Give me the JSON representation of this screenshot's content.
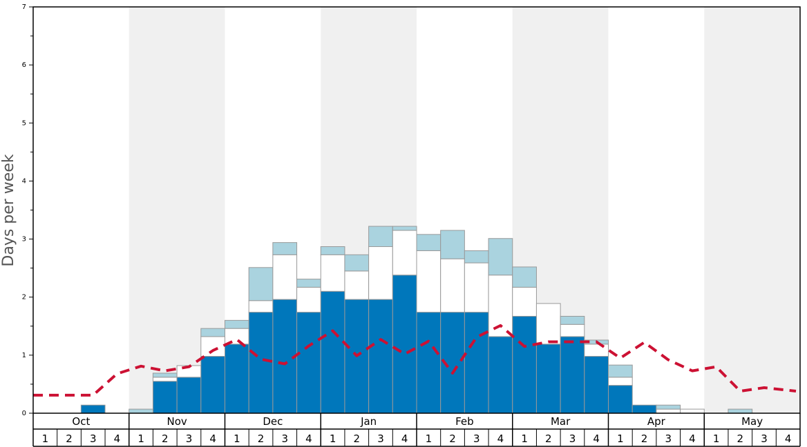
{
  "chart_data": {
    "type": "bar",
    "stacked": true,
    "ylabel": "Days per week",
    "ylim": [
      0,
      7
    ],
    "y_ticks": [
      "0",
      "1",
      "2",
      "3",
      "4",
      "5",
      "6",
      "7"
    ],
    "months": [
      "Oct",
      "Nov",
      "Dec",
      "Jan",
      "Feb",
      "Mar",
      "Apr",
      "May"
    ],
    "week_labels": [
      "1",
      "2",
      "3",
      "4"
    ],
    "colors": {
      "bottom": "#0077bb",
      "middle": "#ffffff",
      "top": "#aad3df",
      "line": "#cc1133",
      "band": "#f0f0f0"
    },
    "series": [
      {
        "values": [
          0,
          0,
          0.14,
          0,
          0,
          0.55,
          0.62,
          0.98,
          1.19,
          1.74,
          1.96,
          1.74,
          2.1,
          1.96,
          1.96,
          2.38,
          1.74,
          1.74,
          1.74,
          1.32,
          1.67,
          1.19,
          1.32,
          0.98,
          0.48,
          0.14,
          0,
          0,
          0,
          0,
          0,
          0
        ]
      },
      {
        "values": [
          0,
          0,
          0,
          0,
          0,
          0.07,
          0.2,
          0.34,
          0.27,
          0.2,
          0.77,
          0.43,
          0.63,
          0.49,
          0.91,
          0.77,
          1.06,
          0.92,
          0.85,
          1.06,
          0.5,
          0.7,
          0.21,
          0.21,
          0.14,
          0,
          0.07,
          0.07,
          0,
          0,
          0,
          0
        ]
      },
      {
        "values": [
          0,
          0,
          0,
          0,
          0.07,
          0.07,
          0,
          0.14,
          0.14,
          0.57,
          0.21,
          0.14,
          0.14,
          0.28,
          0.35,
          0.07,
          0.28,
          0.49,
          0.21,
          0.63,
          0.35,
          0,
          0.14,
          0.07,
          0.21,
          0,
          0.07,
          0,
          0,
          0.07,
          0,
          0
        ]
      }
    ],
    "line": {
      "values": [
        0.31,
        0.31,
        0.31,
        0.68,
        0.81,
        0.73,
        0.8,
        1.08,
        1.27,
        0.93,
        0.85,
        1.16,
        1.42,
        0.99,
        1.27,
        1.02,
        1.24,
        0.69,
        1.31,
        1.51,
        1.15,
        1.23,
        1.23,
        1.23,
        0.95,
        1.22,
        0.92,
        0.73,
        0.8,
        0.38,
        0.44,
        0.38
      ]
    }
  }
}
